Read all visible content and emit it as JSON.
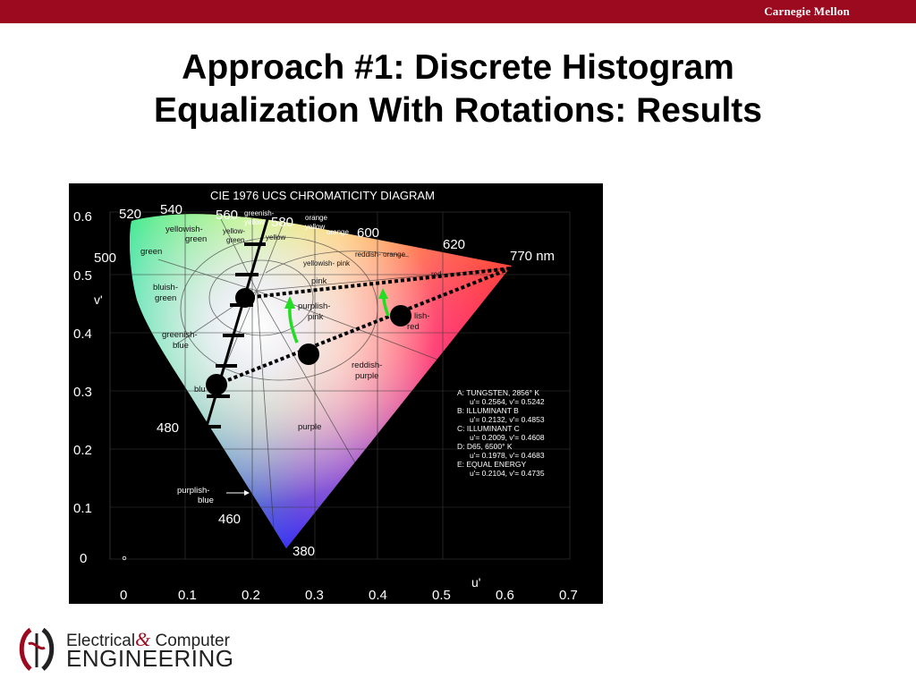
{
  "header": {
    "org": "Carnegie Mellon"
  },
  "slide": {
    "title_line1": "Approach #1:  Discrete Histogram",
    "title_line2": "Equalization With Rotations:  Results"
  },
  "diagram": {
    "title": "CIE 1976 UCS CHROMATICITY DIAGRAM",
    "y_axis_label": "v'",
    "x_axis_label": "u'",
    "y_ticks": [
      "0.6",
      "0.5",
      "0.4",
      "0.3",
      "0.2",
      "0.1",
      "0"
    ],
    "x_ticks": [
      "0",
      "0.1",
      "0.2",
      "0.3",
      "0.4",
      "0.5",
      "0.6",
      "0.7"
    ],
    "wavelengths": {
      "w520": "520",
      "w540": "540",
      "w560": "560",
      "w580": "580",
      "w600": "600",
      "w620": "620",
      "w770": "770 nm",
      "w500": "500",
      "w480": "480",
      "w460": "460",
      "w380": "380"
    },
    "regions": {
      "greenish_yellow_1": "greenish-",
      "greenish_yellow_2": "yellow",
      "orange_yellow_1": "orange",
      "orange_yellow_2": "yellow",
      "orange": "orange",
      "yellowish_green_1": "yellowish-",
      "yellowish_green_2": "green",
      "yellow_green_1": "yellow-",
      "yellow_green_2": "green",
      "yellow": "yellow",
      "green": "green",
      "reddish_orange": "reddish- orange",
      "red": "red",
      "yellowish_pink": "yellowish- pink",
      "pink": "pink",
      "bluish_green_1": "bluish-",
      "bluish_green_2": "green",
      "purplish_pink_1": "purplish-",
      "purplish_pink_2": "pink",
      "purplish_red_1": "lish-",
      "purplish_red_2": "red",
      "greenish_blue_1": "greenish-",
      "greenish_blue_2": "blue",
      "reddish_purple_1": "reddish-",
      "reddish_purple_2": "purple",
      "blue": "blu",
      "purple": "purple",
      "purplish_blue_1": "purplish-",
      "purplish_blue_2": "blue"
    },
    "legend_lines": [
      "A:  TUNGSTEN, 2856° K",
      "u'= 0.2564, v'= 0.5242",
      "B:  ILLUMINANT B",
      "u'= 0.2132, v'= 0.4853",
      "C: ILLUMINANT C",
      "u'= 0.2009, v'= 0.4608",
      "D:  D65, 6500° K",
      "u'= 0.1978, v'= 0.4683",
      "E:  EQUAL ENERGY",
      "u'= 0.2104, v'= 0.4735"
    ],
    "colors": {
      "marker": "#000000",
      "arrow": "#22dd22",
      "axis_line": "#000000"
    }
  },
  "footer": {
    "logo_line1": "Electrical",
    "logo_amp": "&",
    "logo_line1b": " Computer",
    "logo_line2": "ENGINEERING"
  }
}
